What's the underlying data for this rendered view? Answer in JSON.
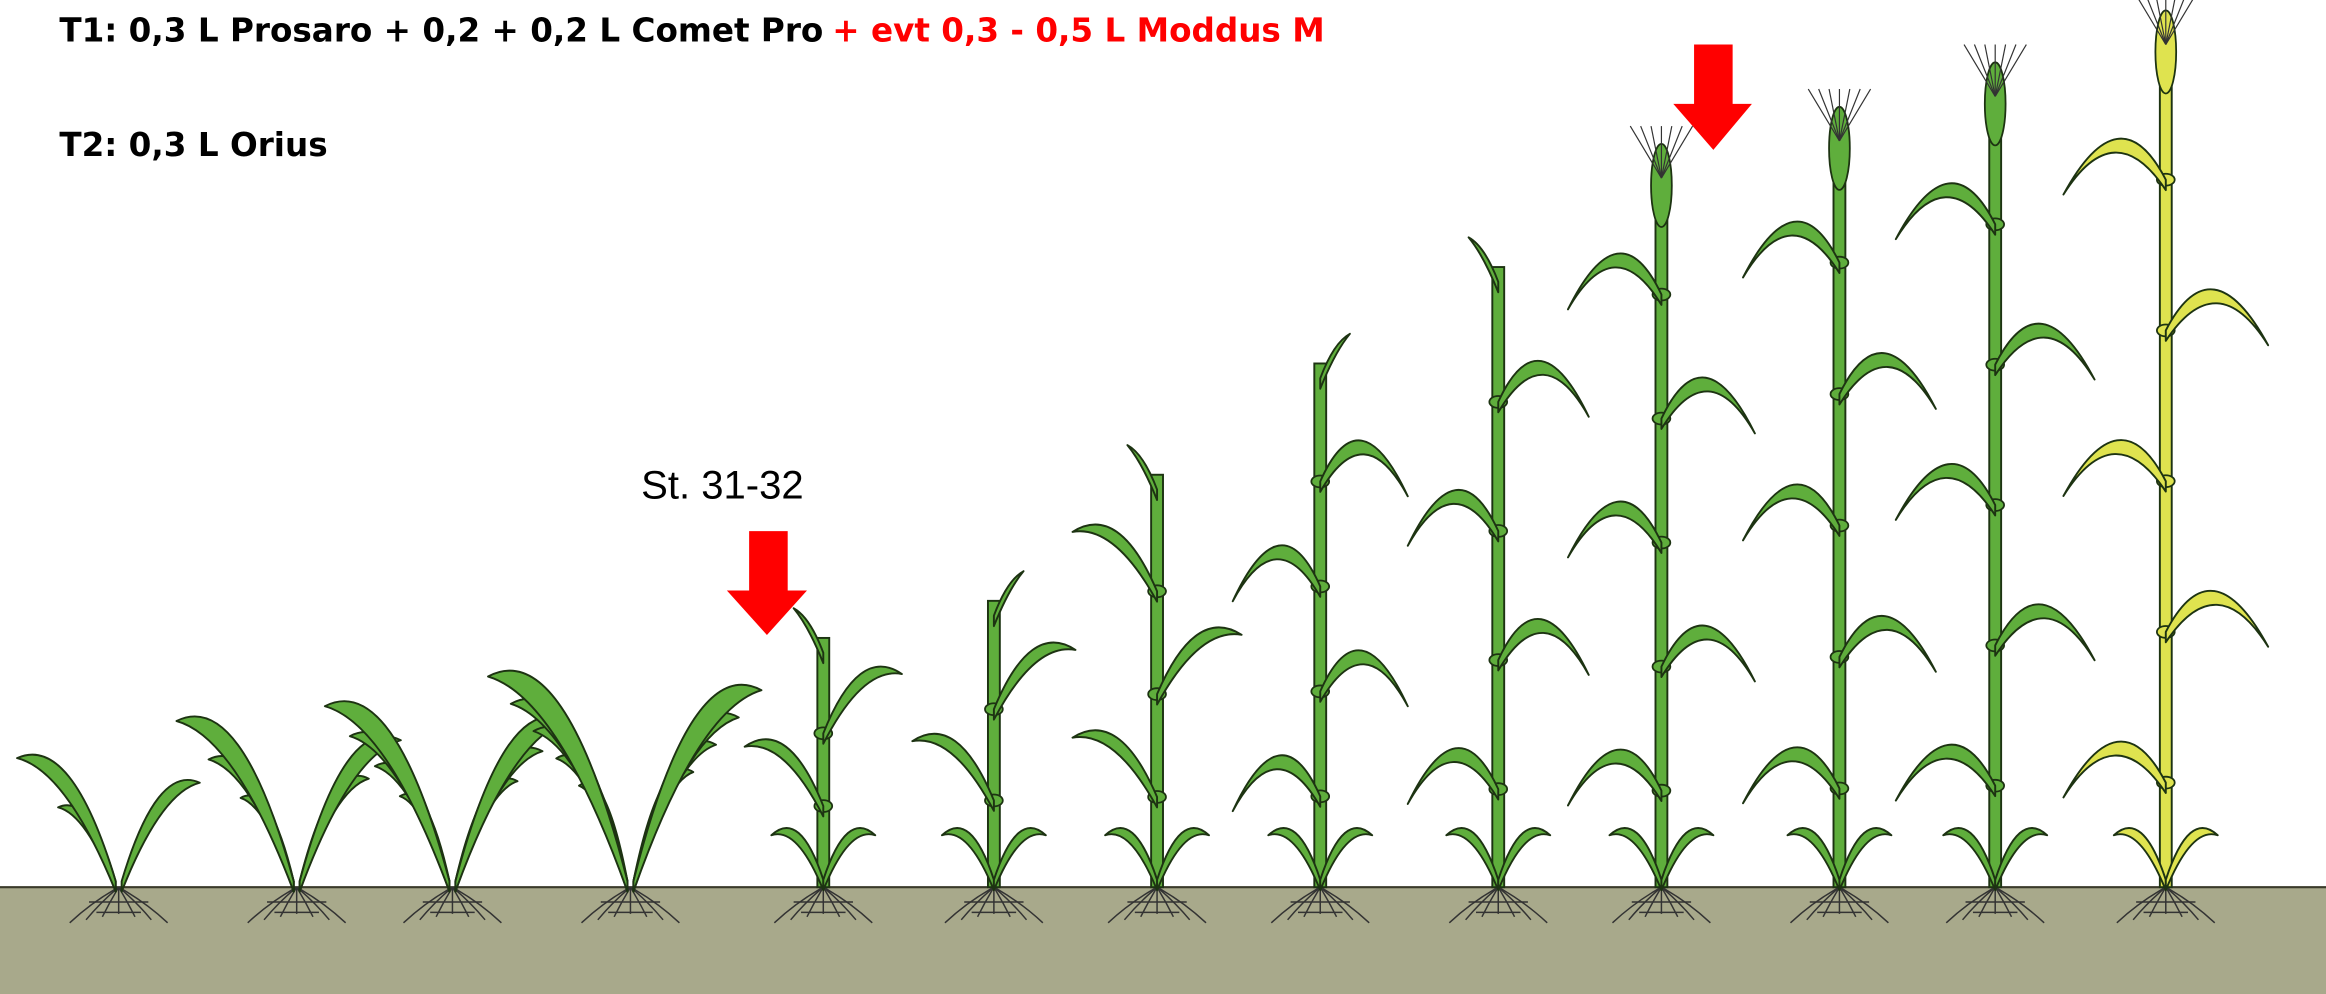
{
  "treatments": {
    "t1": {
      "text": "T1: 0,3 L Prosaro + 0,2 + 0,2 L Comet Pro",
      "addition": "+ evt 0,3 - 0,5 L Moddus M"
    },
    "t2": {
      "text": "T2: 0,3 L Orius"
    }
  },
  "stage_label": "St. 31-32"
}
